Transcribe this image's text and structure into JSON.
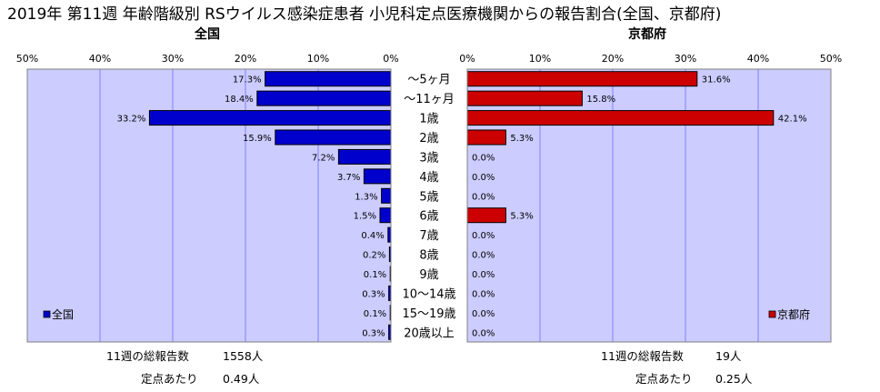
{
  "title": "2019年 第11週 年齢階級別 RSウイルス感染症患者 小児科定点医療機関からの報告割合(全国、京都府)",
  "colors": {
    "national": "#0000cc",
    "kyoto": "#cc0000",
    "plot_bg": "#ccccff",
    "grid": "#8080ff"
  },
  "chart_data": [
    {
      "type": "bar",
      "orientation": "horizontal",
      "direction": "right-to-left",
      "subtitle": "全国",
      "legend": "全国",
      "legend_position": "bottom-left",
      "ticks": [
        "50%",
        "40%",
        "30%",
        "20%",
        "10%",
        "0%"
      ],
      "xlim": [
        0,
        50
      ],
      "grid": true,
      "categories": [
        "～5ヶ月",
        "～11ヶ月",
        "1歳",
        "2歳",
        "3歳",
        "4歳",
        "5歳",
        "6歳",
        "7歳",
        "8歳",
        "9歳",
        "10～14歳",
        "15～19歳",
        "20歳以上"
      ],
      "values": [
        17.3,
        18.4,
        33.2,
        15.9,
        7.2,
        3.7,
        1.3,
        1.5,
        0.4,
        0.2,
        0.1,
        0.3,
        0.1,
        0.3
      ],
      "labels": [
        "17.3%",
        "18.4%",
        "33.2%",
        "15.9%",
        "7.2%",
        "3.7%",
        "1.3%",
        "1.5%",
        "0.4%",
        "0.2%",
        "0.1%",
        "0.3%",
        "0.1%",
        "0.3%"
      ]
    },
    {
      "type": "bar",
      "orientation": "horizontal",
      "direction": "left-to-right",
      "subtitle": "京都府",
      "legend": "京都府",
      "legend_position": "bottom-right",
      "ticks": [
        "0%",
        "10%",
        "20%",
        "30%",
        "40%",
        "50%"
      ],
      "xlim": [
        0,
        50
      ],
      "grid": true,
      "categories": [
        "～5ヶ月",
        "～11ヶ月",
        "1歳",
        "2歳",
        "3歳",
        "4歳",
        "5歳",
        "6歳",
        "7歳",
        "8歳",
        "9歳",
        "10～14歳",
        "15～19歳",
        "20歳以上"
      ],
      "values": [
        31.6,
        15.8,
        42.1,
        5.3,
        0,
        0,
        0,
        5.3,
        0,
        0,
        0,
        0,
        0,
        0
      ],
      "labels": [
        "31.6%",
        "15.8%",
        "42.1%",
        "5.3%",
        "0.0%",
        "0.0%",
        "0.0%",
        "5.3%",
        "0.0%",
        "0.0%",
        "0.0%",
        "0.0%",
        "0.0%",
        "0.0%"
      ]
    }
  ],
  "footer": {
    "national": {
      "total_label": "11週の総報告数",
      "total_value": "1558人",
      "per_label": "定点あたり",
      "per_value": "0.49人"
    },
    "kyoto": {
      "total_label": "11週の総報告数",
      "total_value": "19人",
      "per_label": "定点あたり",
      "per_value": "0.25人"
    }
  }
}
